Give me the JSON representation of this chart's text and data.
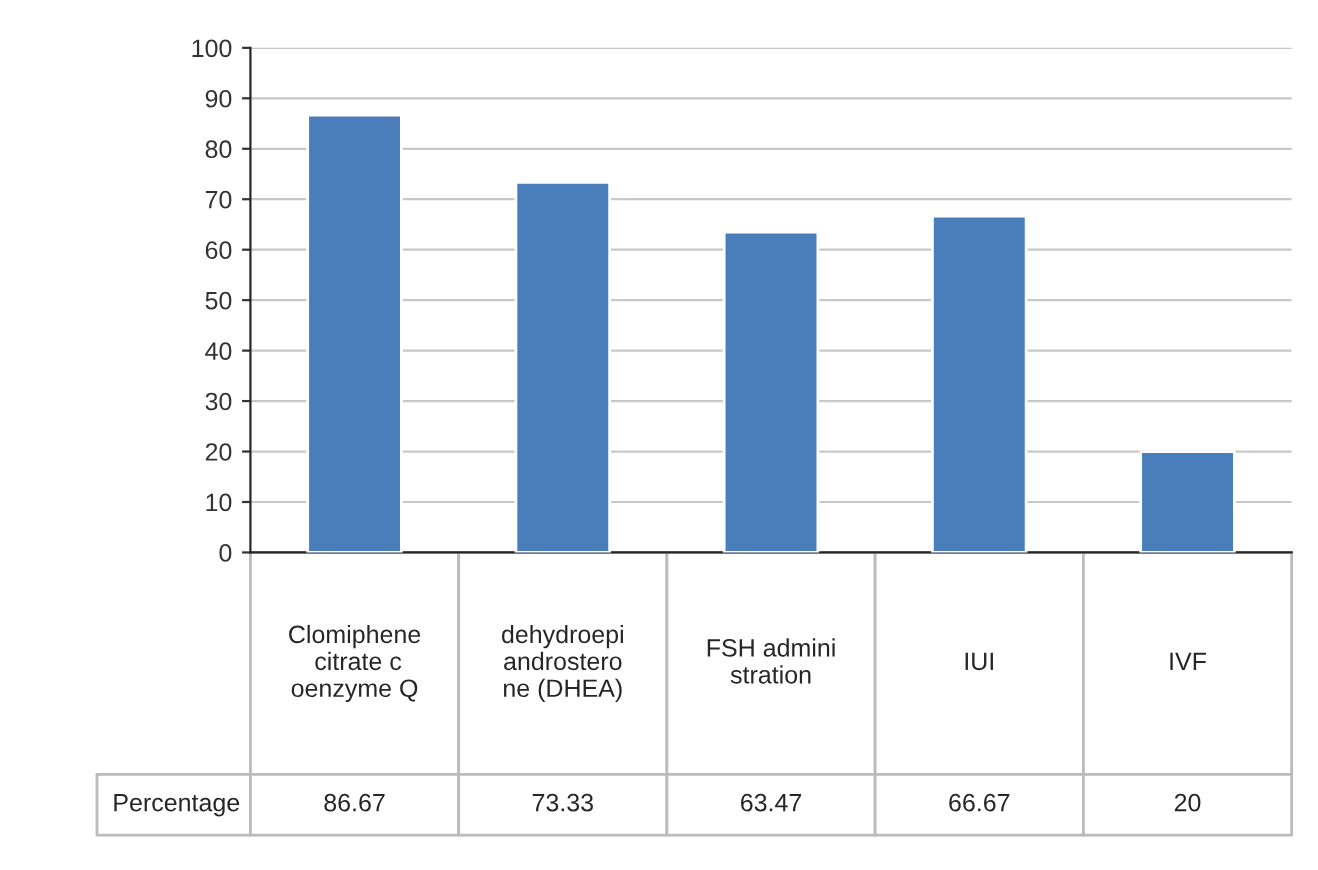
{
  "chart_data": {
    "type": "bar",
    "categories": [
      "Clomiphene citrate coenzyme Q",
      "dehydroepiandrosterone (DHEA)",
      "FSH administration",
      "IUI",
      "IVF"
    ],
    "series": [
      {
        "name": "Percentage",
        "color": "#4a7ebb",
        "values": [
          86.67,
          73.33,
          63.47,
          66.67,
          20
        ]
      }
    ],
    "ylim": [
      0,
      100
    ],
    "yticks": [
      0,
      10,
      20,
      30,
      40,
      50,
      60,
      70,
      80,
      90,
      100
    ],
    "grid": "y",
    "data_labels": true,
    "legend": false
  }
}
